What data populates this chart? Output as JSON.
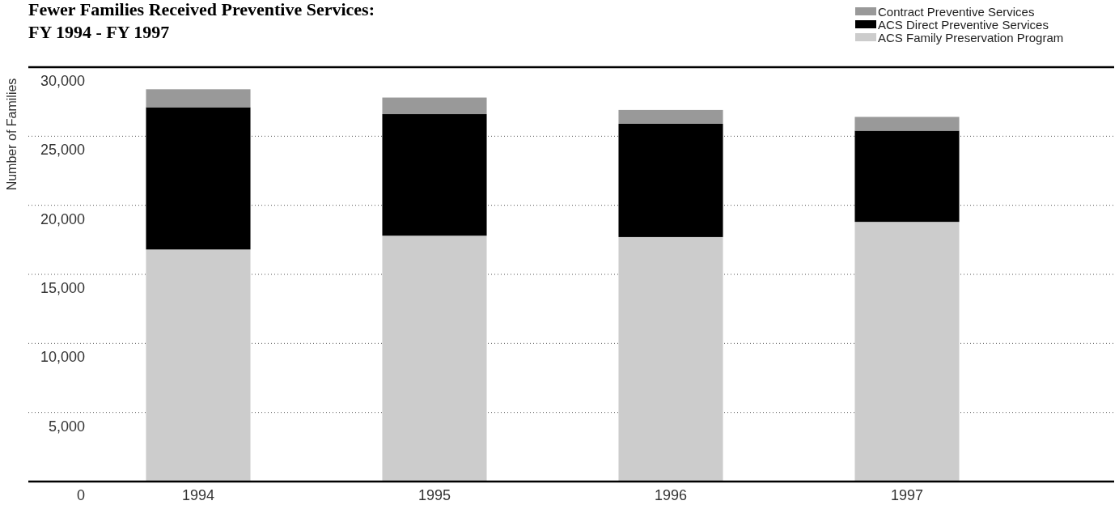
{
  "chart_data": {
    "type": "bar",
    "title": "Fewer Families Received Preventive Services:\nFY 1994 - FY 1997",
    "ylabel": "Number of Families",
    "categories": [
      "1994",
      "1995",
      "1996",
      "1997"
    ],
    "series": [
      {
        "name": "ACS Family Preservation Program",
        "color": "#cccccc",
        "values": [
          16800,
          17800,
          17700,
          18800
        ]
      },
      {
        "name": "ACS Direct Preventive Services",
        "color": "#000000",
        "values": [
          10300,
          8800,
          8200,
          6600
        ]
      },
      {
        "name": "Contract Preventive Services",
        "color": "#999999",
        "values": [
          1300,
          1200,
          1000,
          1000
        ]
      }
    ],
    "stacked": true,
    "ylim": [
      0,
      30000
    ],
    "yticks": [
      0,
      {
        "value": 5000,
        "label": "5,000"
      },
      {
        "value": 10000,
        "label": "10,000"
      },
      {
        "value": 15000,
        "label": "15,000"
      },
      {
        "value": 20000,
        "label": "20,000"
      },
      {
        "value": 25000,
        "label": "25,000"
      },
      {
        "value": 30000,
        "label": "30,000"
      }
    ],
    "grid": "y",
    "legend": "top right"
  }
}
